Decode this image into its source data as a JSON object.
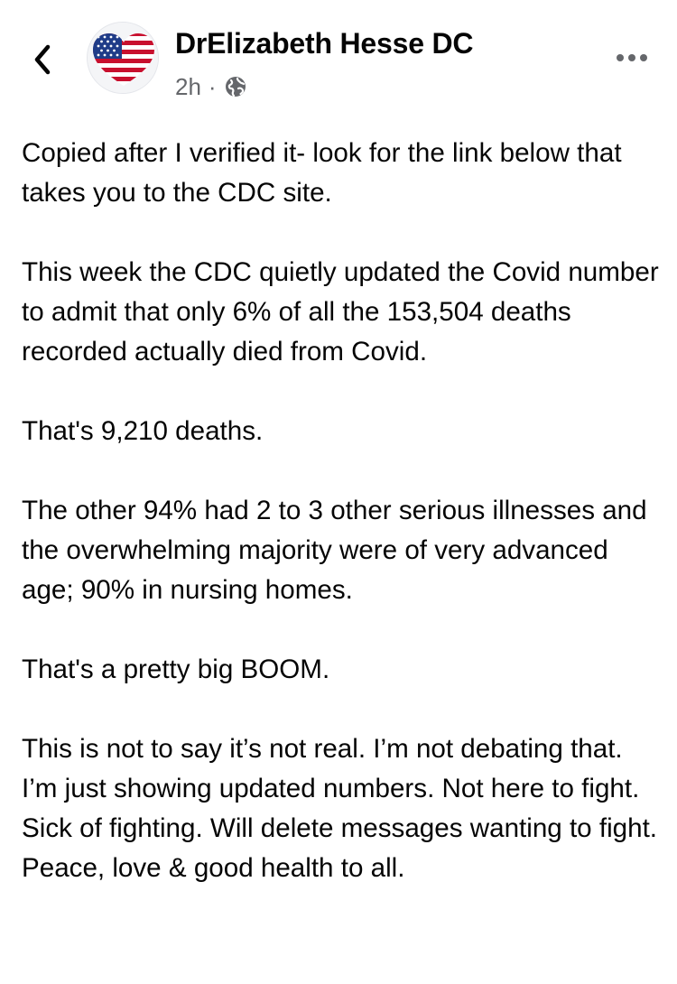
{
  "header": {
    "author_name": "DrElizabeth Hesse DC",
    "time": "2h",
    "separator": "·",
    "privacy_icon": "globe-icon",
    "back_icon": "chevron-left-icon",
    "more_icon": "more-horizontal-icon",
    "avatar_icon": "us-flag-heart-icon"
  },
  "post": {
    "paragraphs": [
      "Copied after I verified it- look for the link below that takes you to the CDC site.",
      "This week the CDC quietly updated the Covid number to admit that only 6% of all the 153,504 deaths recorded actually died from Covid.",
      "That's 9,210 deaths.",
      "The other 94% had 2 to 3 other serious illnesses and the overwhelming majority were of very advanced age; 90% in nursing homes.",
      "That's a pretty big BOOM.",
      "This is not to say it’s not real. I’m not debating that. I’m just showing updated numbers. Not here to fight. Sick of fighting. Will delete messages wanting to fight.",
      "Peace, love & good health to all."
    ]
  },
  "colors": {
    "text": "#050505",
    "secondary_text": "#65676b",
    "flag_red": "#c8102e",
    "flag_blue": "#1f3c88"
  }
}
